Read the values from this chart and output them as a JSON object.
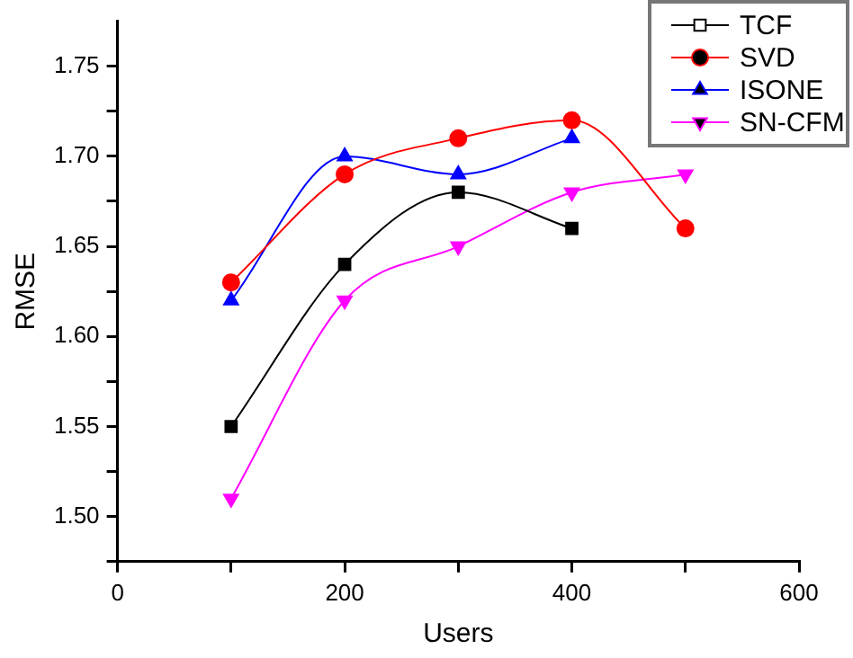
{
  "chart_data": {
    "type": "line",
    "xlabel": "Users",
    "ylabel": "RMSE",
    "x": [
      100,
      200,
      300,
      400,
      500
    ],
    "series": [
      {
        "name": "TCF",
        "color": "#000000",
        "marker": "square",
        "values": [
          1.55,
          1.64,
          1.68,
          1.66,
          null
        ]
      },
      {
        "name": "SVD",
        "color": "#ff0000",
        "marker": "circle",
        "values": [
          1.63,
          1.69,
          1.71,
          1.72,
          1.66
        ]
      },
      {
        "name": "ISONE",
        "color": "#0000ff",
        "marker": "triangle",
        "values": [
          1.62,
          1.7,
          1.69,
          1.71,
          null
        ]
      },
      {
        "name": "SN-CFM",
        "color": "#ff00ff",
        "marker": "triangle-down",
        "values": [
          1.51,
          1.62,
          1.65,
          1.68,
          1.69
        ]
      }
    ],
    "xlim": [
      0,
      600
    ],
    "xticks": [
      0,
      {
        "value": 100,
        "label": null
      },
      200,
      {
        "value": 300,
        "label": null
      },
      400,
      {
        "value": 500,
        "label": null
      },
      600
    ],
    "ylim": [
      1.475,
      1.775
    ],
    "yticks": [
      {
        "value": 1.475,
        "label": null
      },
      "1.50",
      {
        "value": 1.525,
        "label": null
      },
      {
        "value": 1.55,
        "label": "1.55"
      },
      {
        "value": 1.575,
        "label": null
      },
      {
        "value": 1.6,
        "label": "1.60"
      },
      {
        "value": 1.625,
        "label": null
      },
      {
        "value": 1.65,
        "label": "1.65"
      },
      {
        "value": 1.675,
        "label": null
      },
      {
        "value": 1.7,
        "label": "1.70"
      },
      {
        "value": 1.725,
        "label": null
      },
      {
        "value": 1.75,
        "label": "1.75"
      }
    ],
    "grid": false,
    "legend": "top right"
  }
}
